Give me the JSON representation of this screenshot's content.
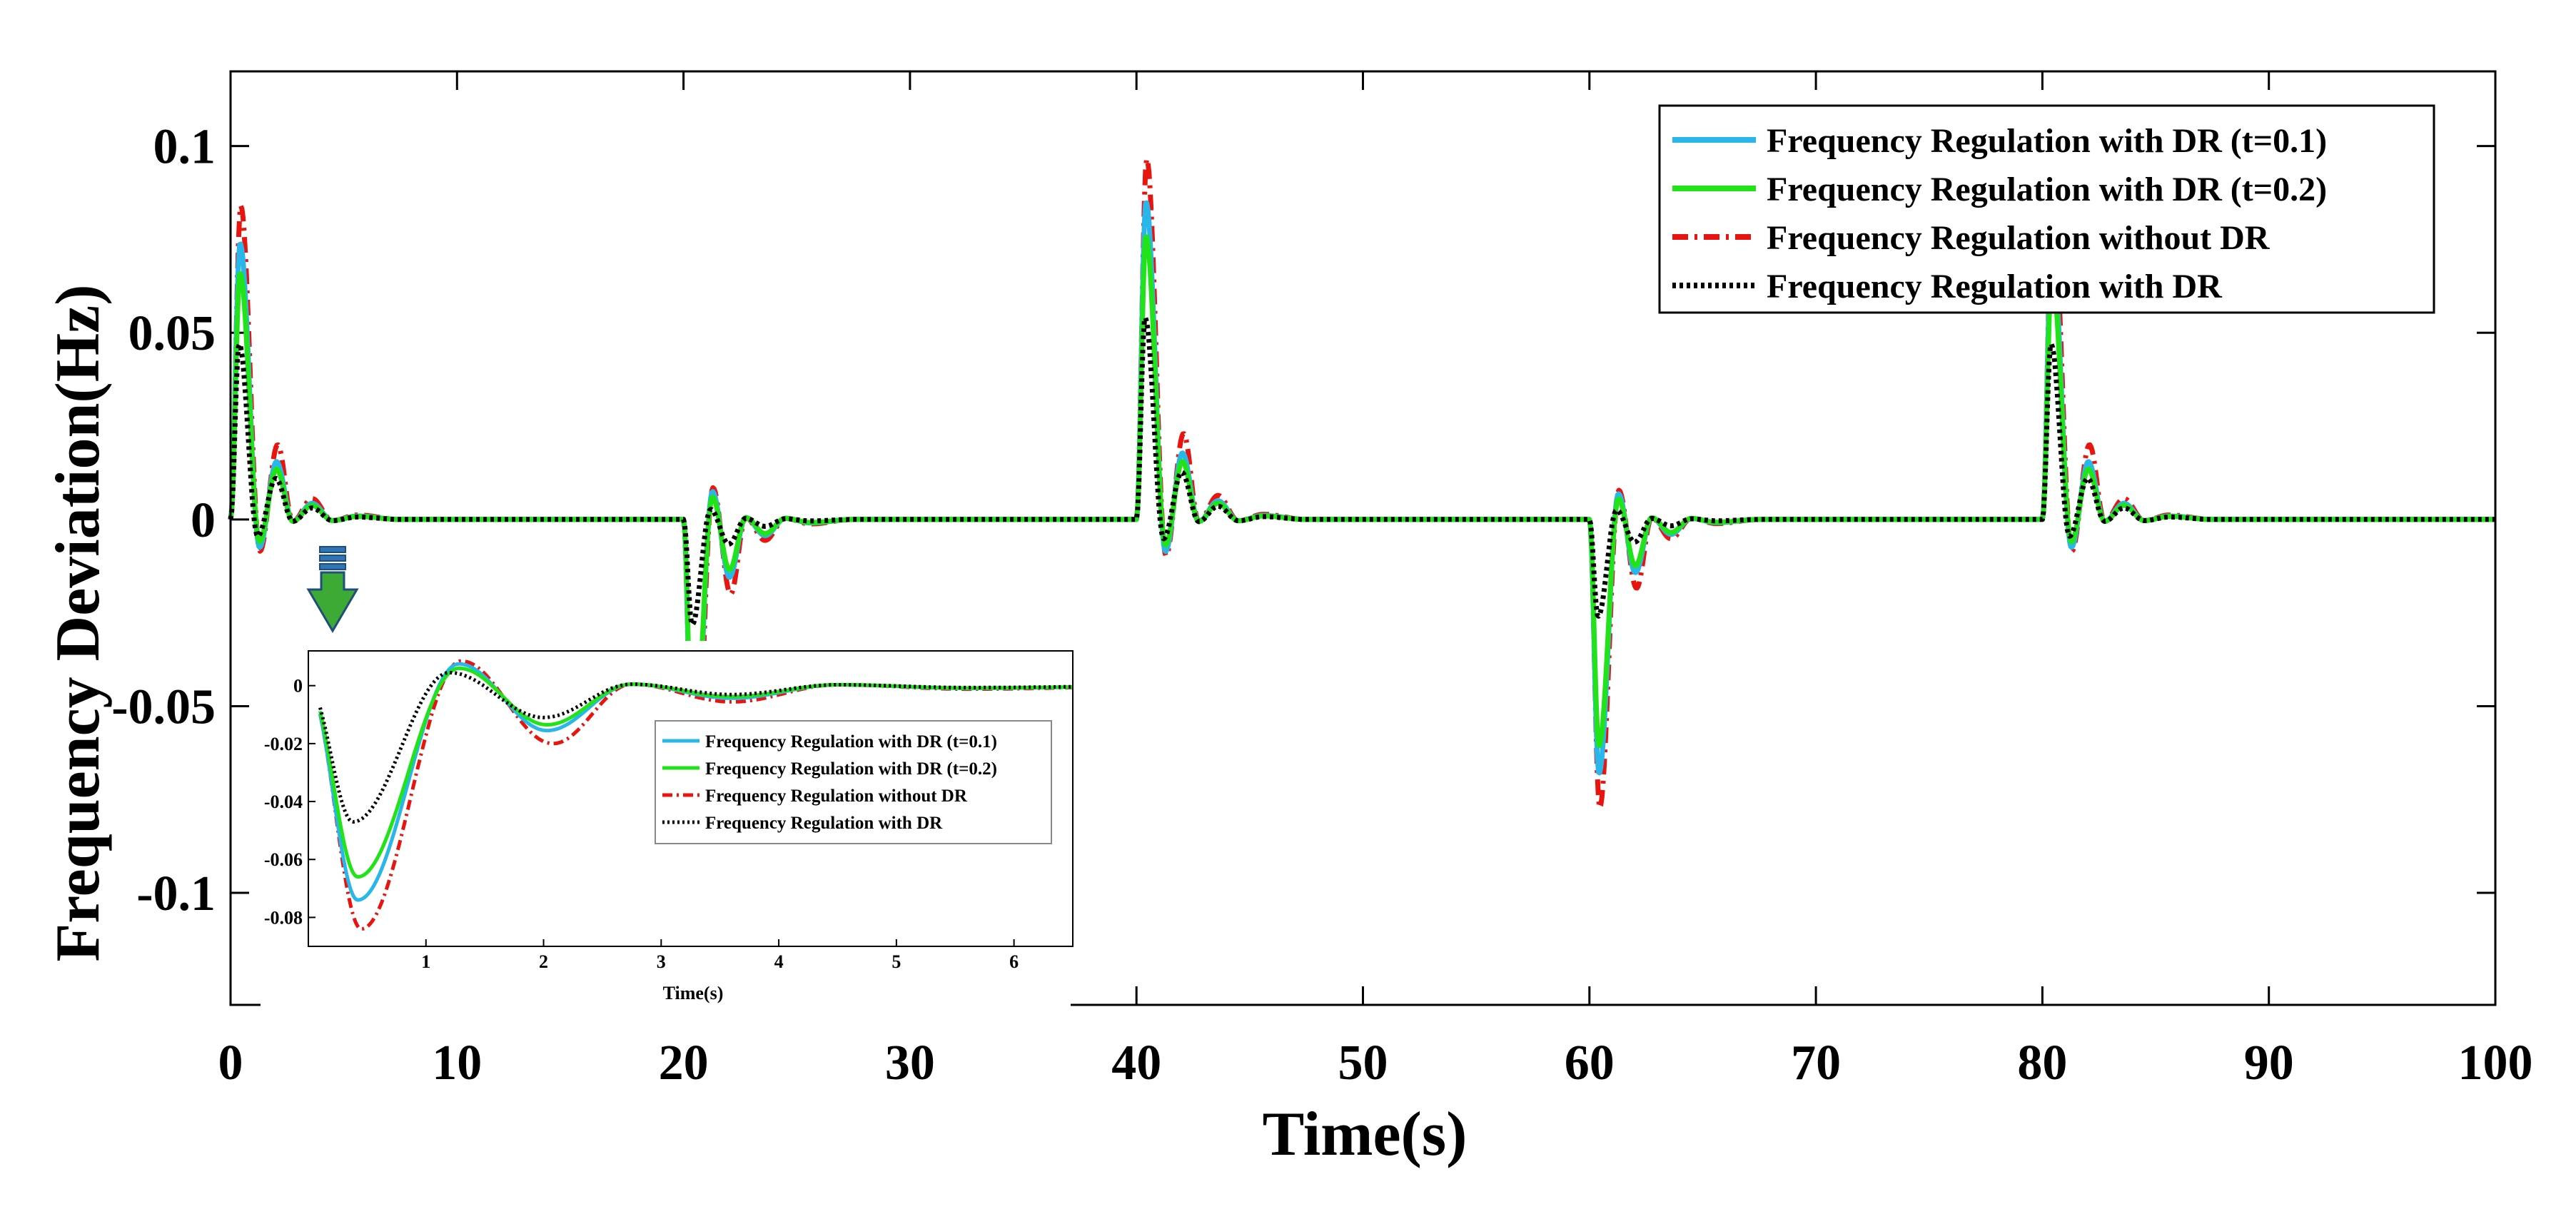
{
  "chart_data": {
    "type": "line",
    "xlabel": "Time(s)",
    "ylabel": "Frequency Deviation(Hz)",
    "xlim": [
      0,
      100
    ],
    "ylim": [
      -0.13,
      0.12
    ],
    "xticks": [
      0,
      10,
      20,
      30,
      40,
      50,
      60,
      70,
      80,
      90,
      100
    ],
    "xtick_labels": [
      "0",
      "10",
      "20",
      "30",
      "40",
      "50",
      "60",
      "70",
      "80",
      "90",
      "100"
    ],
    "yticks": [
      -0.1,
      -0.05,
      0,
      0.05,
      0.1
    ],
    "ytick_labels": [
      "-0.1",
      "-0.05",
      "0",
      "0.05",
      "0.1"
    ],
    "disturbances": [
      {
        "t": 0,
        "sign": -1
      },
      {
        "t": 20,
        "sign": 1
      },
      {
        "t": 40,
        "sign": -1.15
      },
      {
        "t": 60,
        "sign": 0.92
      },
      {
        "t": 80,
        "sign": -1
      }
    ],
    "legend_position": "top-right",
    "series": [
      {
        "name": "Frequency Regulation with DR (t=0.1)",
        "color": "#29B6E8",
        "style": "solid",
        "peak": -0.074,
        "peak_time": 0.42,
        "overshoot": 0.0075,
        "overshoot_time": 1.28,
        "undershoot": -0.0155,
        "undershoot_time": 2.03
      },
      {
        "name": "Frequency Regulation with DR (t=0.2)",
        "color": "#22E31A",
        "style": "solid",
        "peak": -0.066,
        "peak_time": 0.42,
        "overshoot": 0.006,
        "overshoot_time": 1.28,
        "undershoot": -0.0135,
        "undershoot_time": 2.03
      },
      {
        "name": "Frequency Regulation without DR",
        "color": "#E8140F",
        "style": "dashdot",
        "peak": -0.084,
        "peak_time": 0.45,
        "overshoot": 0.0085,
        "overshoot_time": 1.3,
        "undershoot": -0.02,
        "undershoot_time": 2.08
      },
      {
        "name": "Frequency Regulation with DR",
        "color": "#000000",
        "style": "dotted",
        "peak": -0.047,
        "peak_time": 0.38,
        "overshoot": 0.0045,
        "overshoot_time": 1.2,
        "undershoot": -0.011,
        "undershoot_time": 2.0
      }
    ],
    "inset": {
      "xlabel": "Time(s)",
      "xlim": [
        0,
        6.5
      ],
      "ylim": [
        -0.09,
        0.012
      ],
      "xticks": [
        1,
        2,
        3,
        4,
        5,
        6
      ],
      "xtick_labels": [
        "1",
        "2",
        "3",
        "4",
        "5",
        "6"
      ],
      "yticks": [
        -0.08,
        -0.06,
        -0.04,
        -0.02,
        0
      ],
      "ytick_labels": [
        "-0.08",
        "-0.06",
        "-0.04",
        "-0.02",
        "0"
      ],
      "legend_position": "center-right"
    }
  }
}
